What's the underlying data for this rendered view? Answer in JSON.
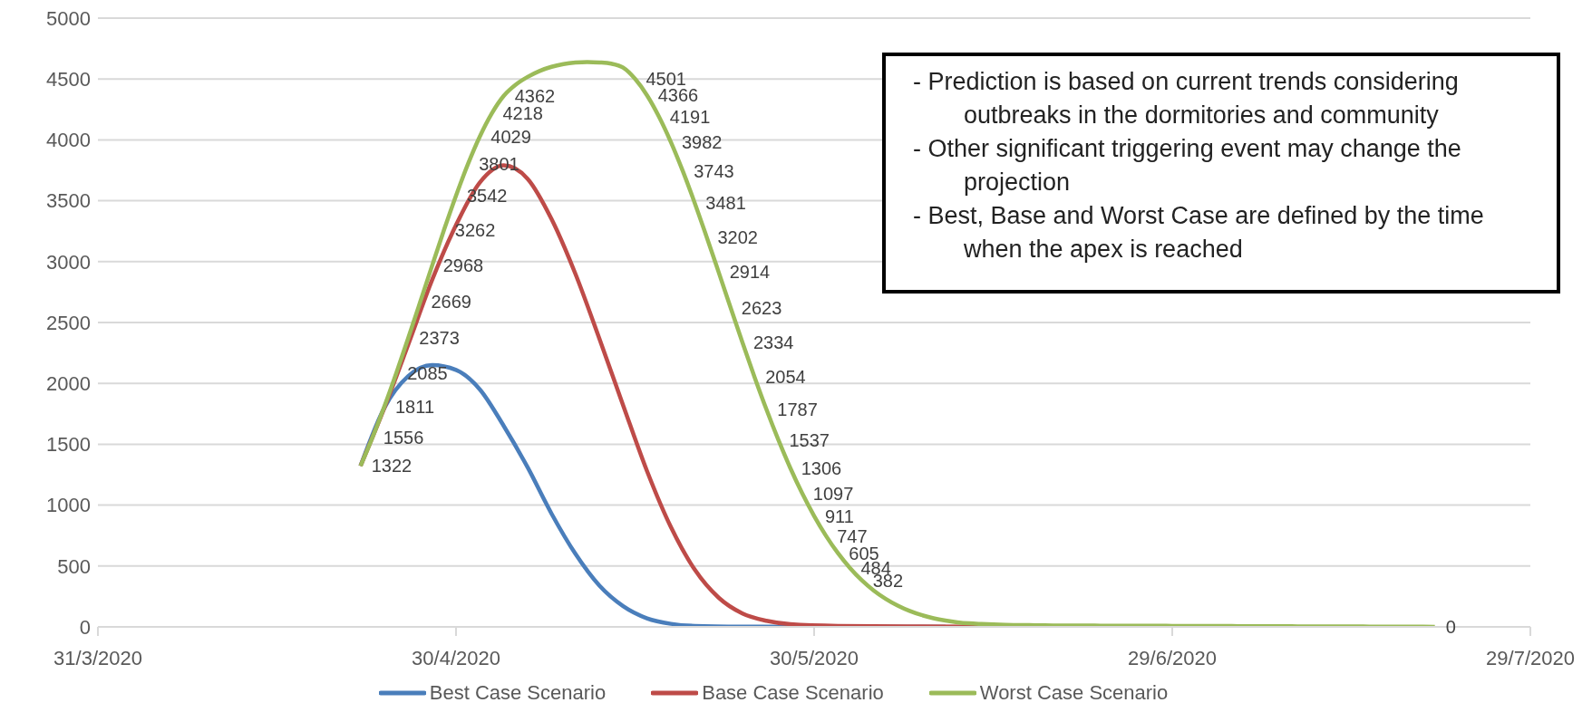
{
  "chart_data": {
    "type": "line",
    "xlim": [
      "2020-03-31",
      "2020-07-29"
    ],
    "xticks": [
      {
        "value": "2020-03-31",
        "label": "31/3/2020"
      },
      {
        "value": "2020-04-30",
        "label": "30/4/2020"
      },
      {
        "value": "2020-05-30",
        "label": "30/5/2020"
      },
      {
        "value": "2020-06-29",
        "label": "29/6/2020"
      },
      {
        "value": "2020-07-29",
        "label": "29/7/2020"
      }
    ],
    "ylim": [
      0,
      5000
    ],
    "yticks": [
      0,
      500,
      1000,
      1500,
      2000,
      2500,
      3000,
      3500,
      4000,
      4500,
      5000
    ],
    "grid": "y",
    "legend": "bottom",
    "marker": "none",
    "line_style": "solid",
    "annotations": [
      "- Prediction is based on current trends considering outbreaks in the dormitories and community",
      "- Other significant triggering event may change the projection",
      "- Best, Base and Worst Case are defined by the time when the apex is reached"
    ],
    "series": [
      {
        "name": "Best Case Scenario",
        "color": "#4a7ebb",
        "x": [
          "2020-04-22",
          "2020-04-24",
          "2020-04-26",
          "2020-04-28",
          "2020-04-30",
          "2020-05-02",
          "2020-05-04",
          "2020-05-06",
          "2020-05-08",
          "2020-05-10",
          "2020-05-12",
          "2020-05-14",
          "2020-05-16",
          "2020-05-18",
          "2020-05-20",
          "2020-05-24",
          "2020-05-30",
          "2020-06-10"
        ],
        "values": [
          1322,
          1800,
          2060,
          2150,
          2110,
          1950,
          1650,
          1310,
          930,
          600,
          340,
          170,
          70,
          25,
          8,
          2,
          0,
          0
        ]
      },
      {
        "name": "Base Case Scenario",
        "color": "#be4b48",
        "x": [
          "2020-04-22",
          "2020-04-24",
          "2020-04-26",
          "2020-04-28",
          "2020-04-30",
          "2020-05-02",
          "2020-05-04",
          "2020-05-06",
          "2020-05-08",
          "2020-05-10",
          "2020-05-12",
          "2020-05-14",
          "2020-05-16",
          "2020-05-18",
          "2020-05-20",
          "2020-05-22",
          "2020-05-24",
          "2020-05-26",
          "2020-05-28",
          "2020-06-01",
          "2020-06-08",
          "2020-06-16"
        ],
        "values": [
          1322,
          1800,
          2320,
          2850,
          3300,
          3650,
          3790,
          3680,
          3350,
          2900,
          2370,
          1820,
          1280,
          820,
          470,
          240,
          110,
          50,
          22,
          8,
          3,
          0
        ]
      },
      {
        "name": "Worst Case Scenario",
        "color": "#9bbb59",
        "value_labels": [
          "1322",
          "1556",
          "1811",
          "2085",
          "2373",
          "2669",
          "2968",
          "3262",
          "3542",
          "3801",
          "4029",
          "4218",
          "4362",
          null,
          null,
          null,
          null,
          null,
          null,
          null,
          null,
          null,
          null,
          "4501",
          "4366",
          "4191",
          "3982",
          "3743",
          "3481",
          "3202",
          "2914",
          "2623",
          "2334",
          "2054",
          "1787",
          "1537",
          "1306",
          "1097",
          "911",
          "747",
          "605",
          "484",
          "382",
          null,
          null,
          null,
          null,
          null,
          null,
          null,
          null,
          null,
          null,
          null,
          null,
          null,
          null,
          null,
          null,
          null,
          null,
          null,
          null,
          null,
          null,
          null,
          null,
          null,
          null,
          null,
          null,
          null,
          null,
          null,
          null,
          null,
          null,
          null,
          null,
          null,
          null,
          null,
          null,
          null,
          null,
          null,
          null,
          null,
          null,
          null,
          "0"
        ],
        "x": [
          "2020-04-22",
          "2020-04-23",
          "2020-04-24",
          "2020-04-25",
          "2020-04-26",
          "2020-04-27",
          "2020-04-28",
          "2020-04-29",
          "2020-04-30",
          "2020-05-01",
          "2020-05-02",
          "2020-05-03",
          "2020-05-04",
          "2020-05-05",
          "2020-05-06",
          "2020-05-07",
          "2020-05-08",
          "2020-05-09",
          "2020-05-10",
          "2020-05-11",
          "2020-05-12",
          "2020-05-13",
          "2020-05-14",
          "2020-05-15",
          "2020-05-16",
          "2020-05-17",
          "2020-05-18",
          "2020-05-19",
          "2020-05-20",
          "2020-05-21",
          "2020-05-22",
          "2020-05-23",
          "2020-05-24",
          "2020-05-25",
          "2020-05-26",
          "2020-05-27",
          "2020-05-28",
          "2020-05-29",
          "2020-05-30",
          "2020-05-31",
          "2020-06-01",
          "2020-06-02",
          "2020-06-03",
          "2020-06-04",
          "2020-06-05",
          "2020-06-06",
          "2020-06-07",
          "2020-06-08",
          "2020-06-09",
          "2020-06-10",
          "2020-06-11",
          "2020-06-12",
          "2020-06-13",
          "2020-06-14",
          "2020-06-15",
          "2020-06-16",
          "2020-06-17",
          "2020-06-18",
          "2020-06-19",
          "2020-06-20",
          "2020-06-21",
          "2020-06-22",
          "2020-06-23",
          "2020-06-24",
          "2020-06-25",
          "2020-06-26",
          "2020-06-27",
          "2020-06-28",
          "2020-06-29",
          "2020-06-30",
          "2020-07-01",
          "2020-07-02",
          "2020-07-03",
          "2020-07-04",
          "2020-07-05",
          "2020-07-06",
          "2020-07-07",
          "2020-07-08",
          "2020-07-09",
          "2020-07-10",
          "2020-07-11",
          "2020-07-12",
          "2020-07-13",
          "2020-07-14",
          "2020-07-15",
          "2020-07-16",
          "2020-07-17",
          "2020-07-18",
          "2020-07-19",
          "2020-07-20",
          "2020-07-21"
        ],
        "values": [
          1322,
          1556,
          1811,
          2085,
          2373,
          2669,
          2968,
          3262,
          3542,
          3801,
          4029,
          4218,
          4362,
          4453,
          4517,
          4566,
          4600,
          4622,
          4635,
          4640,
          4636,
          4626,
          4593,
          4501,
          4366,
          4191,
          3982,
          3743,
          3481,
          3202,
          2914,
          2623,
          2334,
          2054,
          1787,
          1537,
          1306,
          1097,
          911,
          747,
          605,
          484,
          382,
          298,
          230,
          175,
          131,
          97,
          71,
          52,
          38,
          29,
          24,
          20,
          17,
          15,
          14,
          13,
          12,
          12,
          11,
          11,
          10,
          10,
          10,
          9,
          9,
          9,
          8,
          8,
          8,
          7,
          7,
          7,
          6,
          6,
          6,
          5,
          5,
          4,
          4,
          3,
          3,
          3,
          3,
          2,
          2,
          2,
          1,
          1,
          0
        ]
      }
    ]
  }
}
